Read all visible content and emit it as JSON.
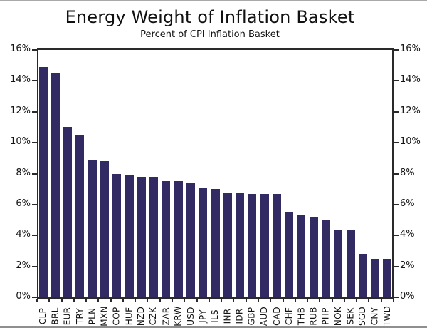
{
  "page": {
    "title": "Energy Weight of Inflation Basket",
    "subtitle": "Percent of CPI Inflation Basket"
  },
  "chart_data": {
    "type": "bar",
    "title": "Energy Weight of Inflation Basket",
    "subtitle": "Percent of CPI Inflation Basket",
    "categories": [
      "CLP",
      "BRL",
      "EUR",
      "TRY",
      "PLN",
      "MXN",
      "COP",
      "HUF",
      "NZD",
      "CZK",
      "ZAR",
      "KRW",
      "USD",
      "JPY",
      "ILS",
      "INR",
      "IDR",
      "GBP",
      "AUD",
      "CAD",
      "CHF",
      "THB",
      "RUB",
      "PHP",
      "NOK",
      "SEK",
      "SGD",
      "CNY",
      "TWD"
    ],
    "values": [
      14.9,
      14.5,
      11.0,
      10.5,
      8.9,
      8.8,
      8.0,
      7.9,
      7.8,
      7.8,
      7.5,
      7.5,
      7.4,
      7.1,
      7.0,
      6.8,
      6.8,
      6.7,
      6.7,
      6.7,
      5.5,
      5.3,
      5.2,
      5.0,
      4.4,
      4.4,
      2.8,
      2.5,
      2.5
    ],
    "unit": "%",
    "xlabel": "",
    "ylabel": "",
    "ylim": [
      0,
      16
    ],
    "y_tick_step": 2,
    "y_tick_labels": [
      "0%",
      "2%",
      "4%",
      "6%",
      "8%",
      "10%",
      "12%",
      "14%",
      "16%"
    ],
    "dual_y_axis": true,
    "grid": false,
    "legend": null,
    "bar_color": "#322b63",
    "axis_color": "#2a2a2a",
    "background_color": "#ffffff"
  }
}
